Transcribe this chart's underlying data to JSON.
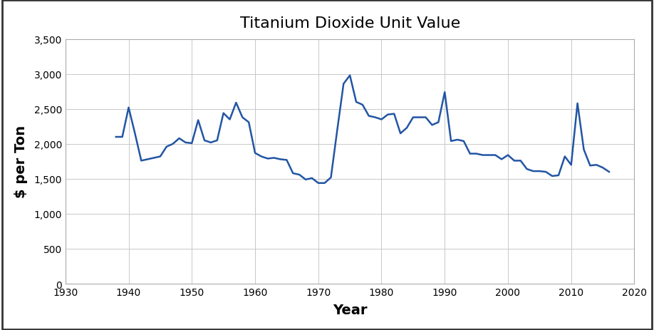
{
  "title": "Titanium Dioxide Unit Value",
  "xlabel": "Year",
  "ylabel": "$ per Ton",
  "line_color": "#2255A4",
  "background_color": "#ffffff",
  "grid_color": "#c8c8c8",
  "border_color": "#333333",
  "xlim": [
    1930,
    2020
  ],
  "ylim": [
    0,
    3500
  ],
  "xticks": [
    1930,
    1940,
    1950,
    1960,
    1970,
    1980,
    1990,
    2000,
    2010,
    2020
  ],
  "yticks": [
    0,
    500,
    1000,
    1500,
    2000,
    2500,
    3000,
    3500
  ],
  "title_fontsize": 16,
  "label_fontsize": 14,
  "tick_fontsize": 10,
  "years": [
    1938,
    1939,
    1940,
    1941,
    1942,
    1943,
    1944,
    1945,
    1946,
    1947,
    1948,
    1949,
    1950,
    1951,
    1952,
    1953,
    1954,
    1955,
    1956,
    1957,
    1958,
    1959,
    1960,
    1961,
    1962,
    1963,
    1964,
    1965,
    1966,
    1967,
    1968,
    1969,
    1970,
    1971,
    1972,
    1973,
    1974,
    1975,
    1976,
    1977,
    1978,
    1979,
    1980,
    1981,
    1982,
    1983,
    1984,
    1985,
    1986,
    1987,
    1988,
    1989,
    1990,
    1991,
    1992,
    1993,
    1994,
    1995,
    1996,
    1997,
    1998,
    1999,
    2000,
    2001,
    2002,
    2003,
    2004,
    2005,
    2006,
    2007,
    2008,
    2009,
    2010,
    2011,
    2012,
    2013,
    2014,
    2015,
    2016
  ],
  "values": [
    2100,
    2100,
    2520,
    2150,
    1760,
    1780,
    1800,
    1820,
    1960,
    2000,
    2080,
    2020,
    2010,
    2340,
    2050,
    2020,
    2050,
    2440,
    2350,
    2590,
    2380,
    2310,
    1870,
    1820,
    1790,
    1800,
    1780,
    1770,
    1580,
    1560,
    1490,
    1510,
    1440,
    1440,
    1520,
    2200,
    2860,
    2980,
    2600,
    2560,
    2400,
    2380,
    2350,
    2420,
    2430,
    2150,
    2230,
    2380,
    2380,
    2380,
    2270,
    2310,
    2740,
    2040,
    2060,
    2040,
    1860,
    1860,
    1840,
    1840,
    1840,
    1780,
    1840,
    1760,
    1760,
    1640,
    1610,
    1610,
    1600,
    1540,
    1550,
    1820,
    1700,
    2580,
    1920,
    1690,
    1700,
    1660,
    1600
  ]
}
